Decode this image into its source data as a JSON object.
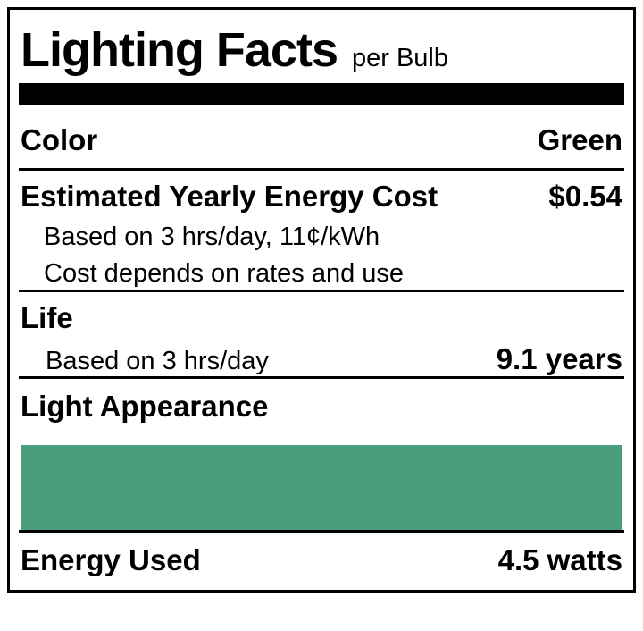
{
  "label": {
    "title": "Lighting Facts",
    "per_unit": "per Bulb",
    "color_row": {
      "label": "Color",
      "value": "Green"
    },
    "energy_cost": {
      "label": "Estimated Yearly Energy Cost",
      "value": "$0.54",
      "notes": [
        "Based on 3 hrs/day, 11¢/kWh",
        "Cost depends on rates and use"
      ]
    },
    "life": {
      "label": "Life",
      "basis": "Based on 3 hrs/day",
      "value": "9.1 years"
    },
    "light_appearance": {
      "label": "Light Appearance",
      "swatch_color": "#4b9e7d"
    },
    "energy_used": {
      "label": "Energy Used",
      "value": "4.5 watts"
    }
  }
}
